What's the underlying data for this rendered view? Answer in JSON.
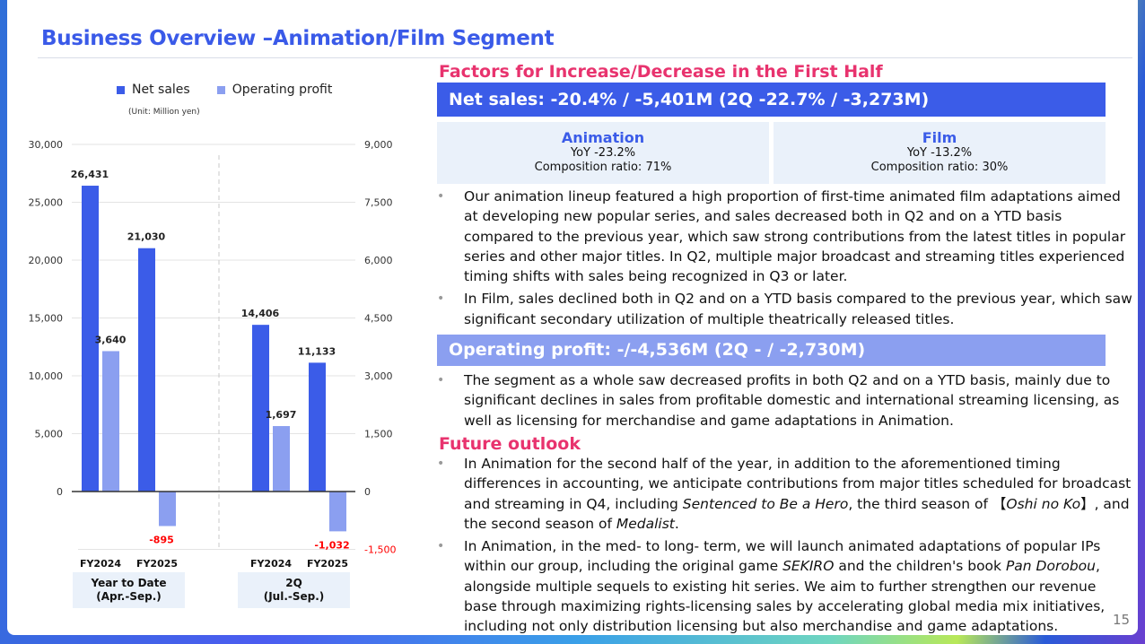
{
  "title": "Business Overview –Animation/Film Segment",
  "page_number": "15",
  "chart_data": {
    "type": "bar",
    "title": "",
    "unit": "(Unit: Million yen)",
    "legend": [
      "Net sales",
      "Operating profit"
    ],
    "legend_placement": "top",
    "groups": [
      {
        "label_line1": "Year to Date",
        "label_line2": "(Apr.-Sep.)",
        "categories": [
          "FY2024",
          "FY2025"
        ]
      },
      {
        "label_line1": "2Q",
        "label_line2": "(Jul.-Sep.)",
        "categories": [
          "FY2024",
          "FY2025"
        ]
      }
    ],
    "categories": [
      "FY2024",
      "FY2025",
      "FY2024",
      "FY2025"
    ],
    "series": [
      {
        "name": "Net sales",
        "axis": "left",
        "color": "#3b5ce8",
        "values": [
          26431,
          21030,
          14406,
          11133
        ],
        "labels": [
          "26,431",
          "21,030",
          "14,406",
          "11,133"
        ]
      },
      {
        "name": "Operating profit",
        "axis": "right",
        "color": "#8b9ff0",
        "values": [
          3640,
          -895,
          1697,
          -1032
        ],
        "labels": [
          "3,640",
          "-895",
          "1,697",
          "-1,032"
        ]
      }
    ],
    "left_axis": {
      "range": [
        0,
        30000
      ],
      "ticks": [
        "30,000",
        "25,000",
        "20,000",
        "15,000",
        "10,000",
        "5,000",
        "0"
      ]
    },
    "right_axis": {
      "range": [
        -1500,
        9000
      ],
      "ticks": [
        "9,000",
        "7,500",
        "6,000",
        "4,500",
        "3,000",
        "1,500",
        "0",
        "-1,500"
      ]
    },
    "grid": true,
    "negative_color": "#ff0000"
  },
  "factors": {
    "heading": "Factors for Increase/Decrease in the First Half",
    "net_sales_bar": "Net sales: -20.4% / -5,401M (2Q -22.7% / -3,273M)",
    "segments": [
      {
        "name": "Animation",
        "yoy": "YoY -23.2%",
        "ratio": "Composition ratio: 71%"
      },
      {
        "name": "Film",
        "yoy": "YoY -13.2%",
        "ratio": "Composition ratio: 30%"
      }
    ],
    "net_sales_bullets": [
      "Our animation lineup featured a high proportion of first-time animated film adaptations aimed at developing new popular series, and sales decreased both in Q2 and on a YTD basis compared to the previous year, which saw strong contributions from the latest titles in popular series and other major titles. In Q2, multiple major broadcast and streaming titles experienced timing shifts with sales being recognized in Q3 or later.",
      "In Film, sales declined both in Q2 and on a YTD basis compared to the previous year, which saw significant secondary utilization of multiple theatrically released titles."
    ],
    "op_bar": "Operating profit: -/-4,536M (2Q - / -2,730M)",
    "op_bullets": [
      "The segment as a whole saw decreased profits in both Q2 and on a YTD basis, mainly due to significant declines in sales from profitable domestic and international streaming licensing, as well as licensing for merchandise and game adaptations in Animation."
    ]
  },
  "outlook": {
    "heading": "Future outlook",
    "bullets": [
      [
        {
          "t": "In Animation for the second half of the year, in addition to the aforementioned timing differences in accounting, we anticipate contributions from major titles scheduled for broadcast and streaming in Q4, including "
        },
        {
          "t": "Sentenced to Be a Hero",
          "i": true
        },
        {
          "t": ", the third season of 【"
        },
        {
          "t": "Oshi no Ko",
          "i": true
        },
        {
          "t": "】, and the second season of "
        },
        {
          "t": "Medalist",
          "i": true
        },
        {
          "t": "."
        }
      ],
      [
        {
          "t": "In Animation, in the med- to long- term, we will launch animated adaptations of popular IPs within our group, including the original game "
        },
        {
          "t": "SEKIRO",
          "i": true
        },
        {
          "t": " and the children's book "
        },
        {
          "t": "Pan Dorobou",
          "i": true
        },
        {
          "t": ", alongside multiple sequels to existing hit series. We aim to further strengthen our revenue base through maximizing rights-licensing sales by accelerating global media mix initiatives, including not only distribution licensing but also merchandise and game adaptations."
        }
      ]
    ]
  }
}
